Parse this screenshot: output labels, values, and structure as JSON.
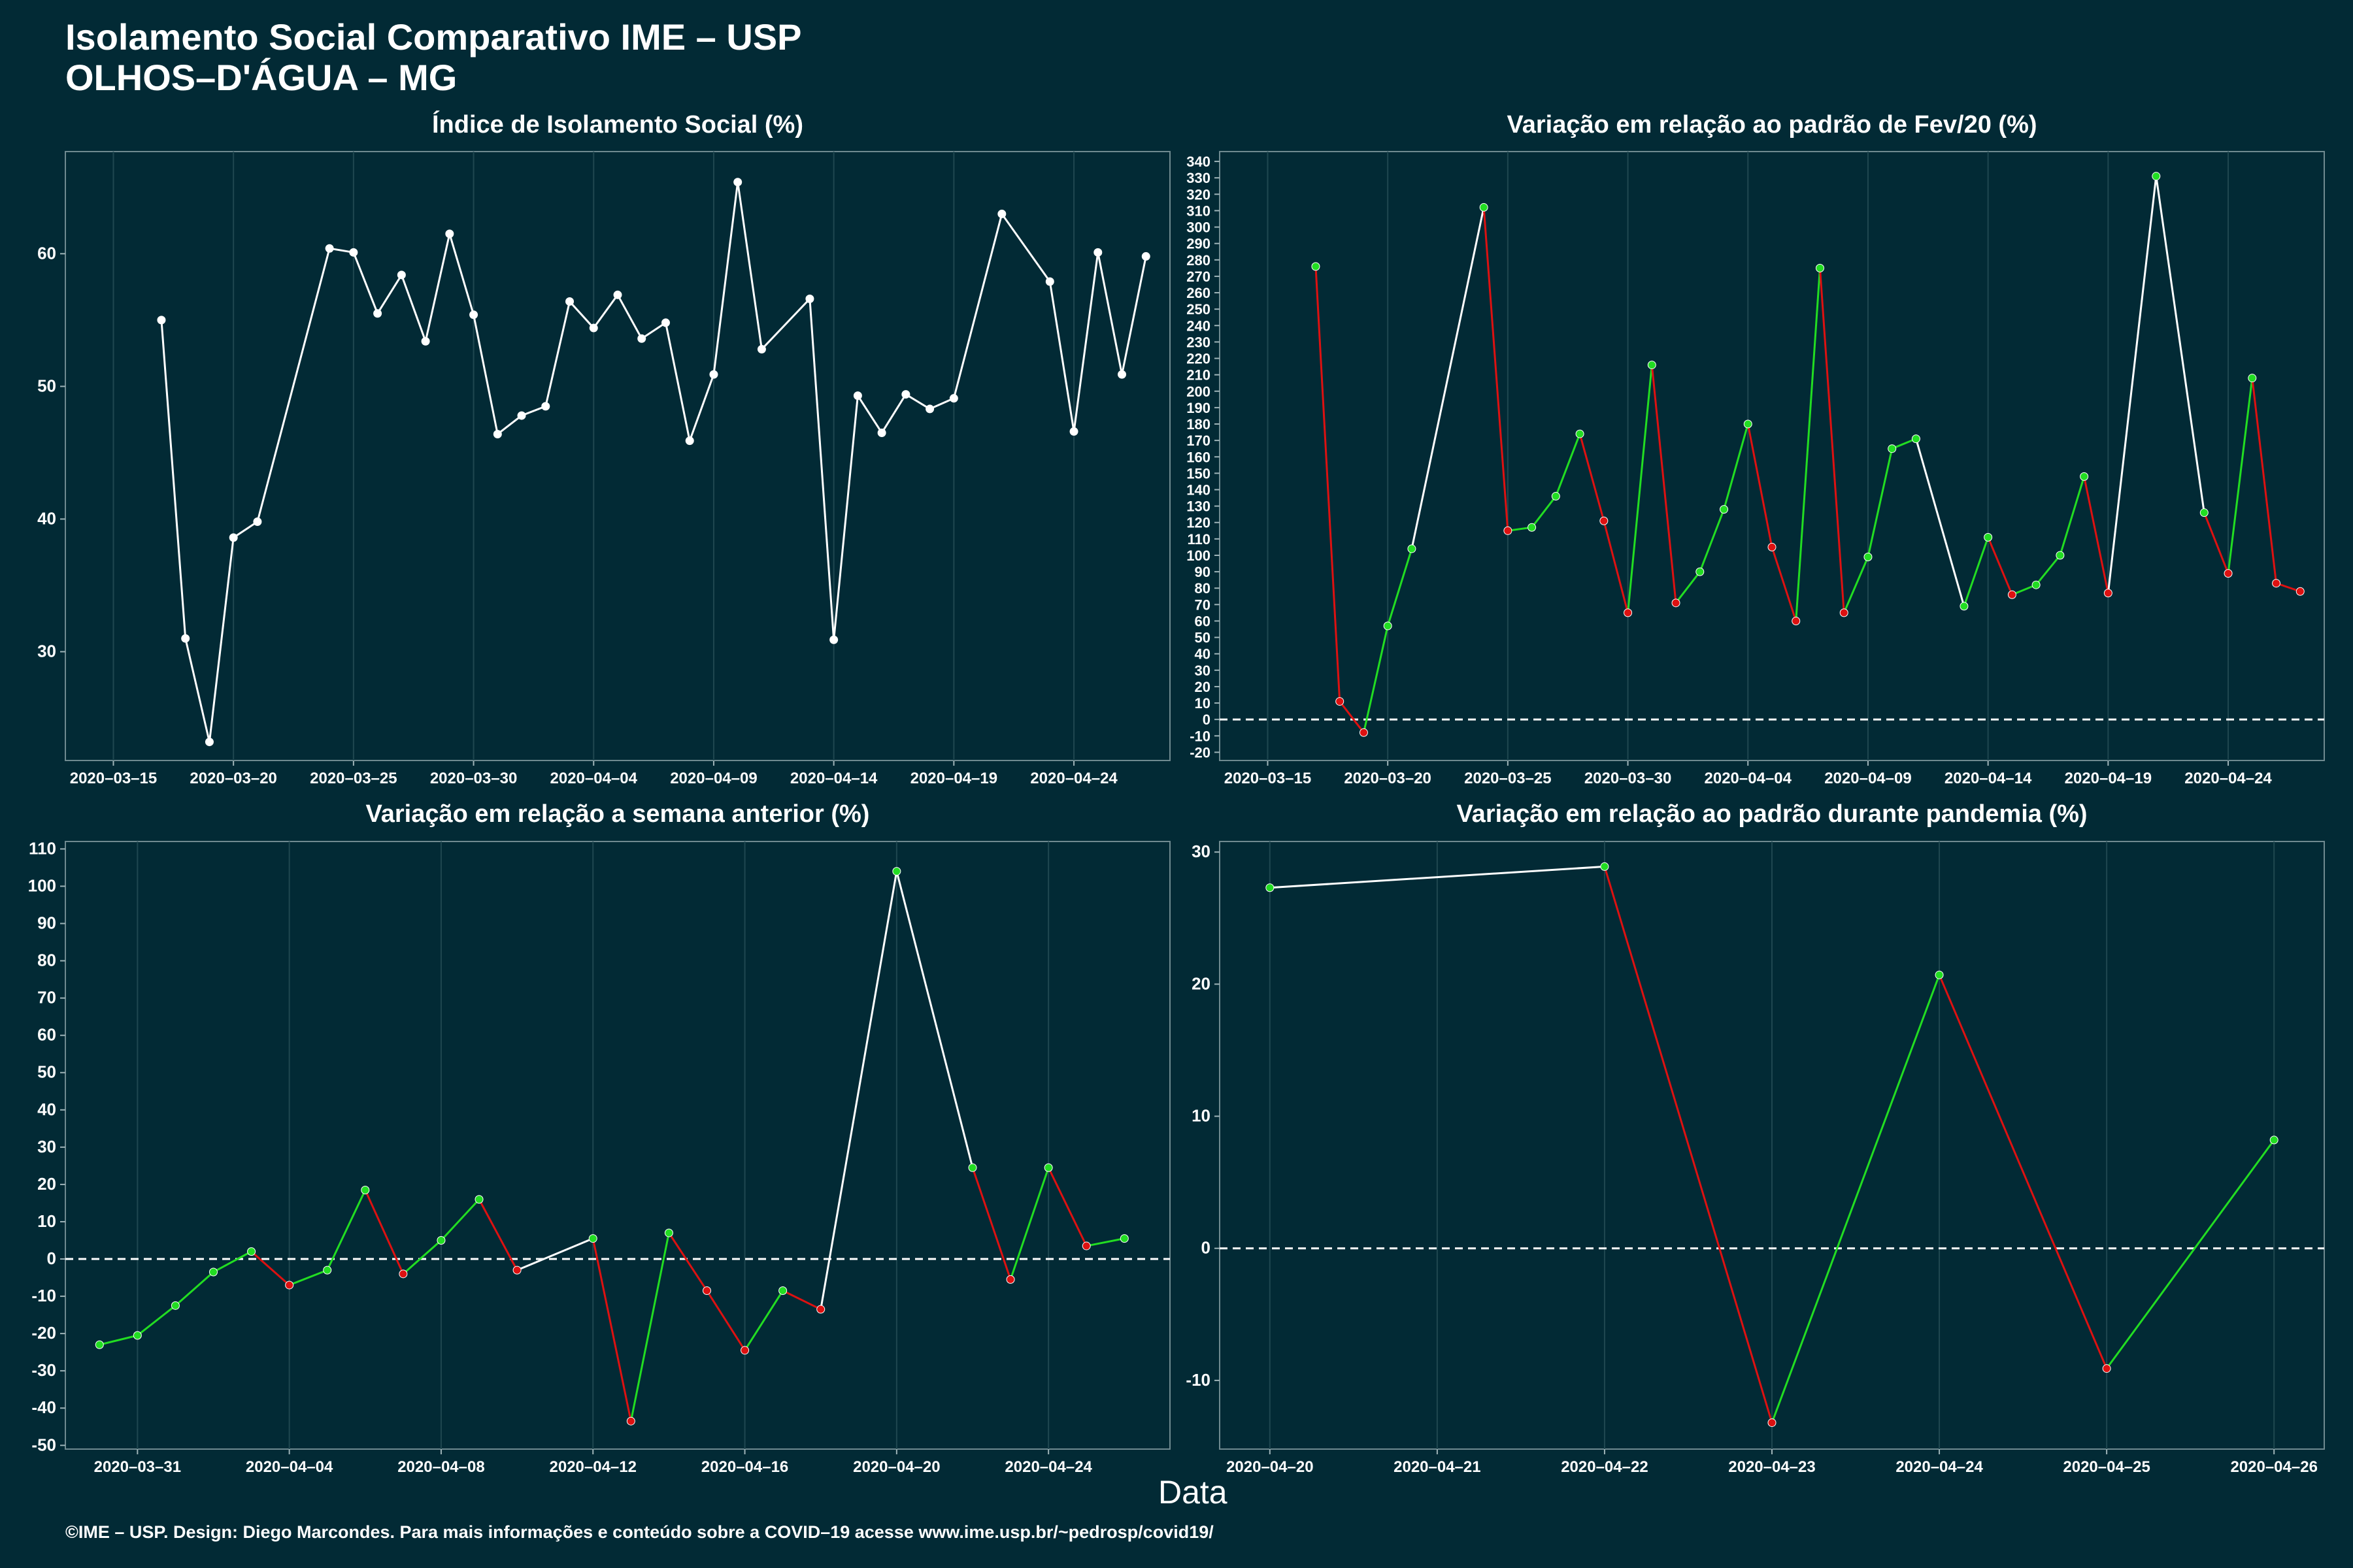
{
  "header": {
    "title_line1": "Isolamento Social Comparativo IME – USP",
    "title_line2": "OLHOS–D'ÁGUA – MG"
  },
  "footer": {
    "text": "©IME – USP. Design: Diego Marcondes. Para mais informações e conteúdo sobre a COVID–19 acesse www.ime.usp.br/~pedrosp/covid19/"
  },
  "xlabel": "Data",
  "colors": {
    "background": "#022a35",
    "panel": "#022a35",
    "grid": "#1f4750",
    "line_neutral": "#ffffff",
    "increase": "#22dd22",
    "decrease": "#dd1111"
  },
  "chart_data": [
    {
      "id": "isolation_index",
      "type": "line",
      "title": "Índice de Isolamento Social (%)",
      "xlabel": "",
      "ylabel": "",
      "x_ticks": [
        "2020–03–15",
        "2020–03–20",
        "2020–03–25",
        "2020–03–30",
        "2020–04–04",
        "2020–04–09",
        "2020–04–14",
        "2020–04–19",
        "2020–04–24"
      ],
      "x_tick_days": [
        0,
        5,
        10,
        15,
        20,
        25,
        30,
        35,
        40
      ],
      "y_ticks": [
        30,
        40,
        50,
        60
      ],
      "xlim": [
        -2,
        44
      ],
      "ylim": [
        21.8,
        67.7
      ],
      "zero_line": false,
      "points": [
        {
          "x": 2,
          "y": 55.0
        },
        {
          "x": 3,
          "y": 31.0
        },
        {
          "x": 4,
          "y": 23.2
        },
        {
          "x": 5,
          "y": 38.6
        },
        {
          "x": 6,
          "y": 39.8
        },
        {
          "x": 9,
          "y": 60.4
        },
        {
          "x": 10,
          "y": 60.1
        },
        {
          "x": 11,
          "y": 55.5
        },
        {
          "x": 12,
          "y": 58.4
        },
        {
          "x": 13,
          "y": 53.4
        },
        {
          "x": 14,
          "y": 61.5
        },
        {
          "x": 15,
          "y": 55.4
        },
        {
          "x": 16,
          "y": 46.4
        },
        {
          "x": 17,
          "y": 47.8
        },
        {
          "x": 18,
          "y": 48.5
        },
        {
          "x": 19,
          "y": 56.4
        },
        {
          "x": 20,
          "y": 54.4
        },
        {
          "x": 21,
          "y": 56.9
        },
        {
          "x": 22,
          "y": 53.6
        },
        {
          "x": 23,
          "y": 54.8
        },
        {
          "x": 24,
          "y": 45.9
        },
        {
          "x": 25,
          "y": 50.9
        },
        {
          "x": 26,
          "y": 65.4
        },
        {
          "x": 27,
          "y": 52.8
        },
        {
          "x": 29,
          "y": 56.6
        },
        {
          "x": 30,
          "y": 30.9
        },
        {
          "x": 31,
          "y": 49.3
        },
        {
          "x": 32,
          "y": 46.5
        },
        {
          "x": 33,
          "y": 49.4
        },
        {
          "x": 34,
          "y": 48.3
        },
        {
          "x": 35,
          "y": 49.1
        },
        {
          "x": 37,
          "y": 63.0
        },
        {
          "x": 39,
          "y": 57.9
        },
        {
          "x": 40,
          "y": 46.6
        },
        {
          "x": 41,
          "y": 60.1
        },
        {
          "x": 42,
          "y": 50.9
        },
        {
          "x": 43,
          "y": 59.8
        }
      ]
    },
    {
      "id": "var_feb_standard",
      "type": "line",
      "title": "Variação em relação ao padrão de Fev/20 (%)",
      "xlabel": "",
      "ylabel": "",
      "x_ticks": [
        "2020–03–15",
        "2020–03–20",
        "2020–03–25",
        "2020–03–30",
        "2020–04–04",
        "2020–04–09",
        "2020–04–14",
        "2020–04–19",
        "2020–04–24"
      ],
      "x_tick_days": [
        0,
        5,
        10,
        15,
        20,
        25,
        30,
        35,
        40
      ],
      "y_ticks": [
        -20,
        -10,
        0,
        10,
        20,
        30,
        40,
        50,
        60,
        70,
        80,
        90,
        100,
        110,
        120,
        130,
        140,
        150,
        160,
        170,
        180,
        190,
        200,
        210,
        220,
        230,
        240,
        250,
        260,
        270,
        280,
        290,
        300,
        310,
        320,
        330,
        340
      ],
      "xlim": [
        -2,
        44
      ],
      "ylim": [
        -25,
        346
      ],
      "zero_line": true,
      "points": [
        {
          "x": 2,
          "y": 276
        },
        {
          "x": 3,
          "y": 11
        },
        {
          "x": 4,
          "y": -8
        },
        {
          "x": 5,
          "y": 57
        },
        {
          "x": 6,
          "y": 104
        },
        {
          "x": 9,
          "y": 312
        },
        {
          "x": 10,
          "y": 115
        },
        {
          "x": 11,
          "y": 117
        },
        {
          "x": 12,
          "y": 136
        },
        {
          "x": 13,
          "y": 174
        },
        {
          "x": 14,
          "y": 121
        },
        {
          "x": 15,
          "y": 65
        },
        {
          "x": 16,
          "y": 216
        },
        {
          "x": 17,
          "y": 71
        },
        {
          "x": 18,
          "y": 90
        },
        {
          "x": 19,
          "y": 128
        },
        {
          "x": 20,
          "y": 180
        },
        {
          "x": 21,
          "y": 105
        },
        {
          "x": 22,
          "y": 60
        },
        {
          "x": 23,
          "y": 275
        },
        {
          "x": 24,
          "y": 65
        },
        {
          "x": 25,
          "y": 99
        },
        {
          "x": 26,
          "y": 165
        },
        {
          "x": 27,
          "y": 171
        },
        {
          "x": 29,
          "y": 69
        },
        {
          "x": 30,
          "y": 111
        },
        {
          "x": 31,
          "y": 76
        },
        {
          "x": 32,
          "y": 82
        },
        {
          "x": 33,
          "y": 100
        },
        {
          "x": 34,
          "y": 148
        },
        {
          "x": 35,
          "y": 77
        },
        {
          "x": 37,
          "y": 331
        },
        {
          "x": 39,
          "y": 126
        },
        {
          "x": 40,
          "y": 89
        },
        {
          "x": 41,
          "y": 208
        },
        {
          "x": 42,
          "y": 83
        },
        {
          "x": 43,
          "y": 78
        }
      ]
    },
    {
      "id": "var_previous_week",
      "type": "line",
      "title": "Variação em relação a semana anterior (%)",
      "xlabel": "",
      "ylabel": "",
      "x_ticks": [
        "2020–03–31",
        "2020–04–04",
        "2020–04–08",
        "2020–04–12",
        "2020–04–16",
        "2020–04–20",
        "2020–04–24"
      ],
      "x_tick_days": [
        0,
        4,
        8,
        12,
        16,
        20,
        24
      ],
      "y_ticks": [
        -50,
        -40,
        -30,
        -20,
        -10,
        0,
        10,
        20,
        30,
        40,
        50,
        60,
        70,
        80,
        90,
        100,
        110
      ],
      "xlim": [
        -1.9,
        27.2
      ],
      "ylim": [
        -51,
        112
      ],
      "zero_line": true,
      "points": [
        {
          "x": -1,
          "y": -23
        },
        {
          "x": 0,
          "y": -20.5
        },
        {
          "x": 1,
          "y": -12.5
        },
        {
          "x": 2,
          "y": -3.5
        },
        {
          "x": 3,
          "y": 2
        },
        {
          "x": 4,
          "y": -7
        },
        {
          "x": 5,
          "y": -3
        },
        {
          "x": 6,
          "y": 18.5
        },
        {
          "x": 7,
          "y": -4
        },
        {
          "x": 8,
          "y": 5
        },
        {
          "x": 9,
          "y": 16
        },
        {
          "x": 10,
          "y": -3
        },
        {
          "x": 12,
          "y": 5.5
        },
        {
          "x": 13,
          "y": -43.5
        },
        {
          "x": 14,
          "y": 7
        },
        {
          "x": 15,
          "y": -8.5
        },
        {
          "x": 16,
          "y": -24.5
        },
        {
          "x": 17,
          "y": -8.5
        },
        {
          "x": 18,
          "y": -13.5
        },
        {
          "x": 20,
          "y": 104
        },
        {
          "x": 22,
          "y": 24.5
        },
        {
          "x": 23,
          "y": -5.5
        },
        {
          "x": 24,
          "y": 24.5
        },
        {
          "x": 25,
          "y": 3.5
        },
        {
          "x": 26,
          "y": 5.5
        }
      ]
    },
    {
      "id": "var_pandemic_standard",
      "type": "line",
      "title": "Variação em relação ao padrão durante pandemia (%)",
      "xlabel": "",
      "ylabel": "",
      "x_ticks": [
        "2020–04–20",
        "2020–04–21",
        "2020–04–22",
        "2020–04–23",
        "2020–04–24",
        "2020–04–25",
        "2020–04–26"
      ],
      "x_tick_days": [
        0,
        1,
        2,
        3,
        4,
        5,
        6
      ],
      "y_ticks": [
        -10,
        0,
        10,
        20,
        30
      ],
      "xlim": [
        -0.3,
        6.3
      ],
      "ylim": [
        -15.2,
        30.8
      ],
      "zero_line": true,
      "points": [
        {
          "x": 0,
          "y": 27.3
        },
        {
          "x": 2,
          "y": 28.9
        },
        {
          "x": 3,
          "y": -13.2
        },
        {
          "x": 4,
          "y": 20.7
        },
        {
          "x": 5,
          "y": -9.1
        },
        {
          "x": 6,
          "y": 8.2
        }
      ]
    }
  ]
}
